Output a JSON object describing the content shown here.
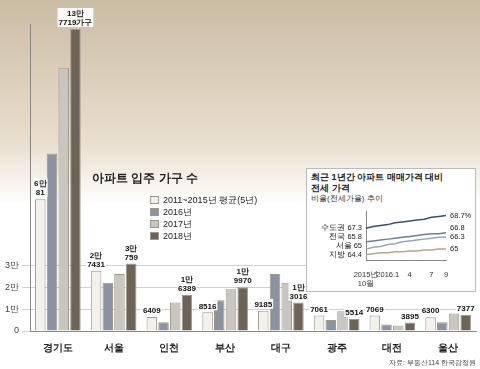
{
  "chart_data": [
    {
      "type": "bar",
      "title": "아파트 입주 가구 수",
      "categories": [
        "경기도",
        "서울",
        "인천",
        "부산",
        "대구",
        "광주",
        "대전",
        "울산"
      ],
      "series": [
        {
          "name": "2011~2015년 평균(5년)",
          "color": "#f4f1ec",
          "values": [
            60081,
            27431,
            6409,
            8516,
            9185,
            7061,
            7069,
            6300
          ],
          "value_labels": [
            "6만81",
            "2만7431",
            "6409",
            "8516",
            "9185",
            "7061",
            "7069",
            "6300"
          ]
        },
        {
          "name": "2016년",
          "color": "#8b93a3",
          "values": [
            81000,
            22000,
            4000,
            14000,
            26000,
            5000,
            3000,
            4000
          ]
        },
        {
          "name": "2017년",
          "color": "#c9c6c0",
          "values": [
            120000,
            26000,
            13000,
            19000,
            22000,
            9000,
            2500,
            8000
          ]
        },
        {
          "name": "2018년",
          "color": "#6e6357",
          "values": [
            137719,
            30759,
            16389,
            19970,
            13016,
            5514,
            3895,
            7377
          ],
          "value_labels": [
            "13만7719가구",
            "3만759",
            "1만6389",
            "1만9970",
            "1만3016",
            "5514",
            "3895",
            "7377"
          ]
        }
      ],
      "ylim": [
        0,
        140000
      ],
      "yticks": [
        0,
        {
          "value": 10000,
          "label": "1만"
        },
        {
          "value": 20000,
          "label": "2만"
        },
        {
          "value": 30000,
          "label": "3만"
        }
      ],
      "grid": true,
      "legend": "top",
      "data_labels": true,
      "source": "자료: 부동산114 한국감정원"
    },
    {
      "type": "line",
      "title": "최근 1년간 아파트 매매가격 대비 전세 가격",
      "subtitle": "비율(전세가율) 추이",
      "categories": [
        "2015년 10월",
        null,
        null,
        "2016.1",
        null,
        null,
        "4",
        null,
        null,
        "7",
        null,
        "9"
      ],
      "series": [
        {
          "name": "수도권",
          "color": "#3e4f6e",
          "values": [
            67.3,
            67.5,
            67.6,
            67.7,
            67.9,
            68.0,
            68.1,
            68.2,
            68.3,
            68.5,
            68.6,
            68.7
          ],
          "value_labels": [
            "67.3",
            null,
            null,
            null,
            null,
            null,
            null,
            null,
            null,
            null,
            null,
            "68.7%"
          ]
        },
        {
          "name": "전국",
          "color": "#6f7f99",
          "values": [
            65.8,
            65.9,
            66.0,
            66.1,
            66.2,
            66.3,
            66.4,
            66.5,
            66.6,
            66.7,
            66.7,
            66.8
          ],
          "value_labels": [
            "65.8",
            null,
            null,
            null,
            null,
            null,
            null,
            null,
            null,
            null,
            null,
            "66.8"
          ]
        },
        {
          "name": "서울",
          "color": "#9aa5b6",
          "values": [
            65.0,
            65.2,
            65.3,
            65.5,
            65.6,
            65.8,
            65.9,
            66.0,
            66.1,
            66.2,
            66.3,
            66.3
          ],
          "value_labels": [
            "65",
            null,
            null,
            null,
            null,
            null,
            null,
            null,
            null,
            null,
            null,
            "66.3"
          ]
        },
        {
          "name": "지방",
          "color": "#b9a68c",
          "values": [
            64.4,
            64.5,
            64.6,
            64.6,
            64.7,
            64.7,
            64.8,
            64.8,
            64.9,
            64.9,
            65.0,
            65.0
          ],
          "value_labels": [
            "64.4",
            null,
            null,
            null,
            null,
            null,
            null,
            null,
            null,
            null,
            null,
            "65"
          ]
        }
      ],
      "ylim": [
        63.8,
        69.2
      ],
      "tick_labels": "x",
      "grid": false,
      "data_labels": true
    }
  ]
}
